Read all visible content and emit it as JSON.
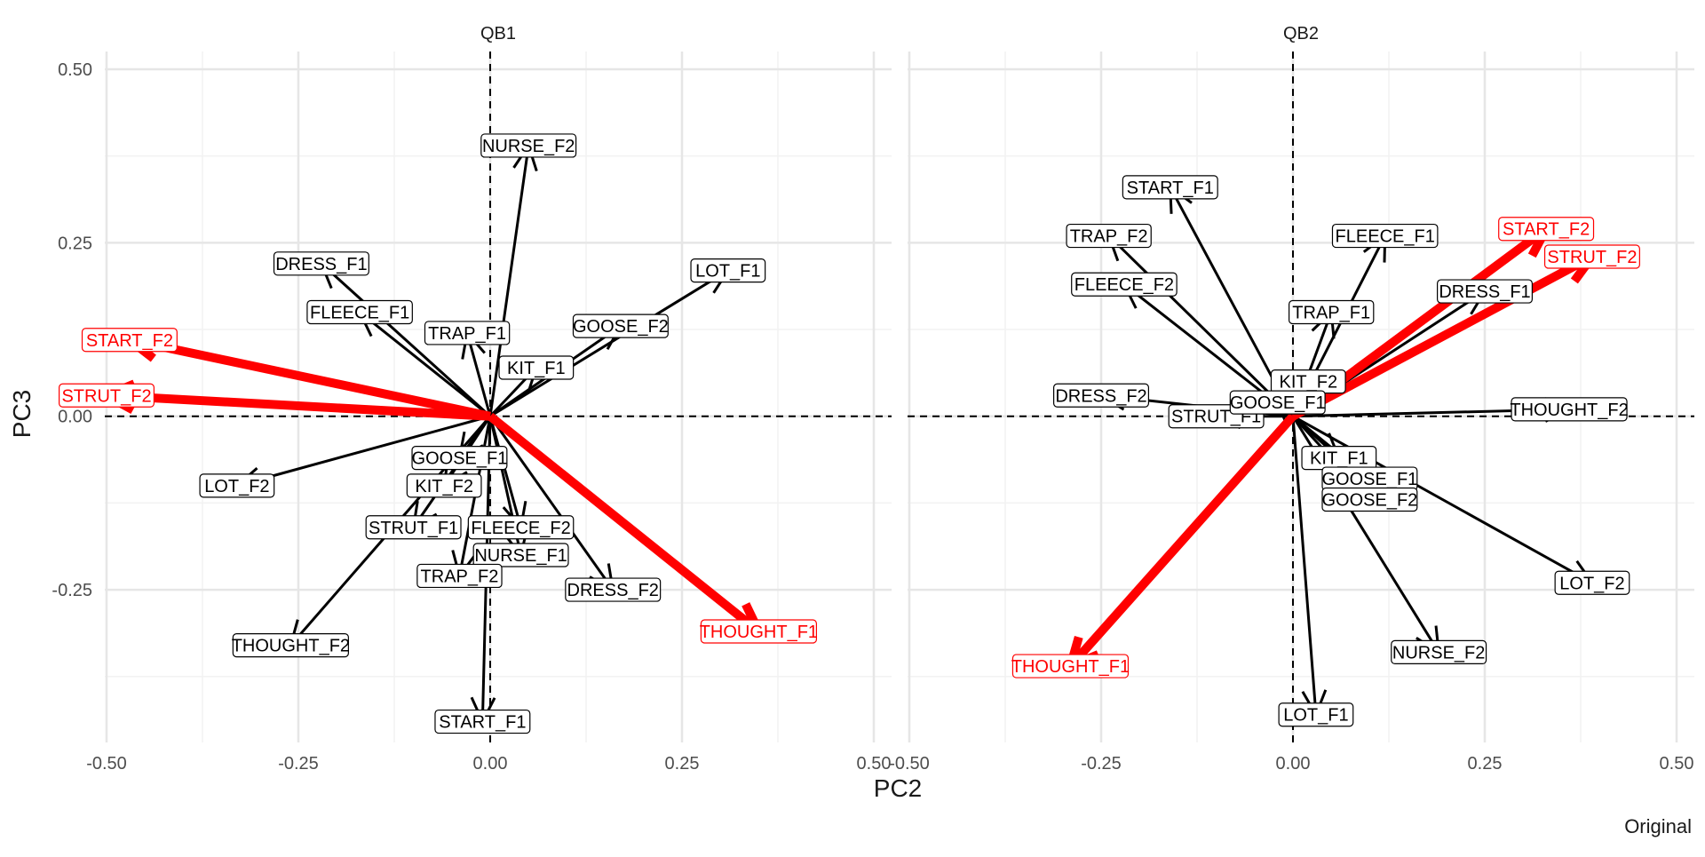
{
  "chart_data": {
    "type": "biplot",
    "xlabel": "PC2",
    "ylabel": "PC3",
    "caption": "Original",
    "xlim": [
      -0.5,
      0.5
    ],
    "ylim": [
      -0.47,
      0.5
    ],
    "x_ticks": [
      -0.5,
      -0.25,
      0.0,
      0.25,
      0.5
    ],
    "x_tick_labels": [
      "-0.50",
      "-0.25",
      "0.00",
      "0.25",
      "0.50"
    ],
    "y_ticks": [
      0.5,
      0.25,
      0.0,
      -0.25
    ],
    "y_tick_labels": [
      "0.50",
      "0.25",
      "0.00",
      "-0.25"
    ],
    "grid": true,
    "reference_lines": "dashed lines at x=0 and y=0",
    "colors": {
      "highlight": "#ff0000",
      "default": "#000000",
      "grid": "#ebebeb"
    },
    "panels": [
      {
        "title": "QB1",
        "vectors": [
          {
            "label": "NURSE_F2",
            "x": 0.05,
            "y": 0.39,
            "highlight": false
          },
          {
            "label": "LOT_F1",
            "x": 0.31,
            "y": 0.21,
            "highlight": false
          },
          {
            "label": "GOOSE_F2",
            "x": 0.17,
            "y": 0.13,
            "highlight": false
          },
          {
            "label": "KIT_F1",
            "x": 0.06,
            "y": 0.07,
            "highlight": false
          },
          {
            "label": "TRAP_F1",
            "x": -0.03,
            "y": 0.12,
            "highlight": false
          },
          {
            "label": "DRESS_F1",
            "x": -0.22,
            "y": 0.22,
            "highlight": false
          },
          {
            "label": "FLEECE_F1",
            "x": -0.17,
            "y": 0.15,
            "highlight": false
          },
          {
            "label": "START_F2",
            "x": -0.47,
            "y": 0.11,
            "highlight": true
          },
          {
            "label": "STRUT_F2",
            "x": -0.5,
            "y": 0.03,
            "highlight": true
          },
          {
            "label": "LOT_F2",
            "x": -0.33,
            "y": -0.1,
            "highlight": false
          },
          {
            "label": "GOOSE_F1",
            "x": -0.04,
            "y": -0.06,
            "highlight": false
          },
          {
            "label": "KIT_F2",
            "x": -0.06,
            "y": -0.1,
            "highlight": false
          },
          {
            "label": "STRUT_F1",
            "x": -0.1,
            "y": -0.16,
            "highlight": false
          },
          {
            "label": "FLEECE_F2",
            "x": 0.04,
            "y": -0.16,
            "highlight": false
          },
          {
            "label": "NURSE_F1",
            "x": 0.04,
            "y": -0.2,
            "highlight": false
          },
          {
            "label": "TRAP_F2",
            "x": -0.04,
            "y": -0.23,
            "highlight": false
          },
          {
            "label": "DRESS_F2",
            "x": 0.16,
            "y": -0.25,
            "highlight": false
          },
          {
            "label": "THOUGHT_F1",
            "x": 0.35,
            "y": -0.31,
            "highlight": true
          },
          {
            "label": "THOUGHT_F2",
            "x": -0.26,
            "y": -0.33,
            "highlight": false
          },
          {
            "label": "START_F1",
            "x": -0.01,
            "y": -0.44,
            "highlight": false
          }
        ]
      },
      {
        "title": "QB2",
        "vectors": [
          {
            "label": "START_F1",
            "x": -0.16,
            "y": 0.33,
            "highlight": false
          },
          {
            "label": "TRAP_F2",
            "x": -0.24,
            "y": 0.26,
            "highlight": false
          },
          {
            "label": "FLEECE_F2",
            "x": -0.22,
            "y": 0.19,
            "highlight": false
          },
          {
            "label": "FLEECE_F1",
            "x": 0.12,
            "y": 0.26,
            "highlight": false
          },
          {
            "label": "TRAP_F1",
            "x": 0.05,
            "y": 0.15,
            "highlight": false
          },
          {
            "label": "START_F2",
            "x": 0.33,
            "y": 0.27,
            "highlight": true
          },
          {
            "label": "STRUT_F2",
            "x": 0.39,
            "y": 0.23,
            "highlight": true
          },
          {
            "label": "DRESS_F1",
            "x": 0.25,
            "y": 0.18,
            "highlight": false
          },
          {
            "label": "KIT_F2",
            "x": 0.02,
            "y": 0.05,
            "highlight": false
          },
          {
            "label": "DRESS_F2",
            "x": -0.25,
            "y": 0.03,
            "highlight": false
          },
          {
            "label": "STRUT_F1",
            "x": -0.1,
            "y": 0.0,
            "highlight": false
          },
          {
            "label": "GOOSE_F1",
            "x": -0.02,
            "y": 0.02,
            "highlight": false
          },
          {
            "label": "THOUGHT_F2",
            "x": 0.36,
            "y": 0.01,
            "highlight": false
          },
          {
            "label": "KIT_F1",
            "x": 0.06,
            "y": -0.06,
            "highlight": false
          },
          {
            "label": "GOOSE_F1",
            "x": 0.1,
            "y": -0.09,
            "highlight": false
          },
          {
            "label": "GOOSE_F2",
            "x": 0.1,
            "y": -0.12,
            "highlight": false
          },
          {
            "label": "LOT_F2",
            "x": 0.39,
            "y": -0.24,
            "highlight": false
          },
          {
            "label": "NURSE_F2",
            "x": 0.19,
            "y": -0.34,
            "highlight": false
          },
          {
            "label": "THOUGHT_F1",
            "x": -0.29,
            "y": -0.36,
            "highlight": true
          },
          {
            "label": "LOT_F1",
            "x": 0.03,
            "y": -0.43,
            "highlight": false
          }
        ]
      }
    ]
  }
}
